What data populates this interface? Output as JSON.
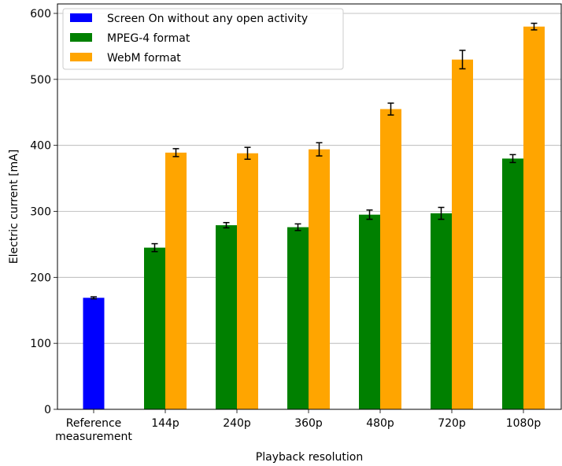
{
  "chart_data": {
    "type": "bar",
    "title": "",
    "xlabel": "Playback resolution",
    "ylabel": "Electric current [mA]",
    "ylim": [
      0,
      600
    ],
    "yticks": [
      0,
      100,
      200,
      300,
      400,
      500,
      600
    ],
    "grid": "horizontal",
    "legend_position": "top-left",
    "categories": [
      [
        "Reference",
        "measurement"
      ],
      [
        "144p"
      ],
      [
        "240p"
      ],
      [
        "360p"
      ],
      [
        "480p"
      ],
      [
        "720p"
      ],
      [
        "1080p"
      ]
    ],
    "series": [
      {
        "name": "Screen On without any open activity",
        "color": "#0000ff",
        "values": [
          169,
          null,
          null,
          null,
          null,
          null,
          null
        ],
        "errors": [
          1.5,
          null,
          null,
          null,
          null,
          null,
          null
        ]
      },
      {
        "name": "MPEG-4 format",
        "color": "#008000",
        "values": [
          null,
          245,
          279,
          276,
          295,
          297,
          380
        ],
        "errors": [
          null,
          6,
          4,
          5,
          7,
          9,
          6
        ]
      },
      {
        "name": "WebM format",
        "color": "#ffa500",
        "values": [
          null,
          389,
          388,
          394,
          455,
          530,
          580
        ],
        "errors": [
          null,
          6,
          9,
          10,
          9,
          14,
          5
        ]
      }
    ]
  }
}
